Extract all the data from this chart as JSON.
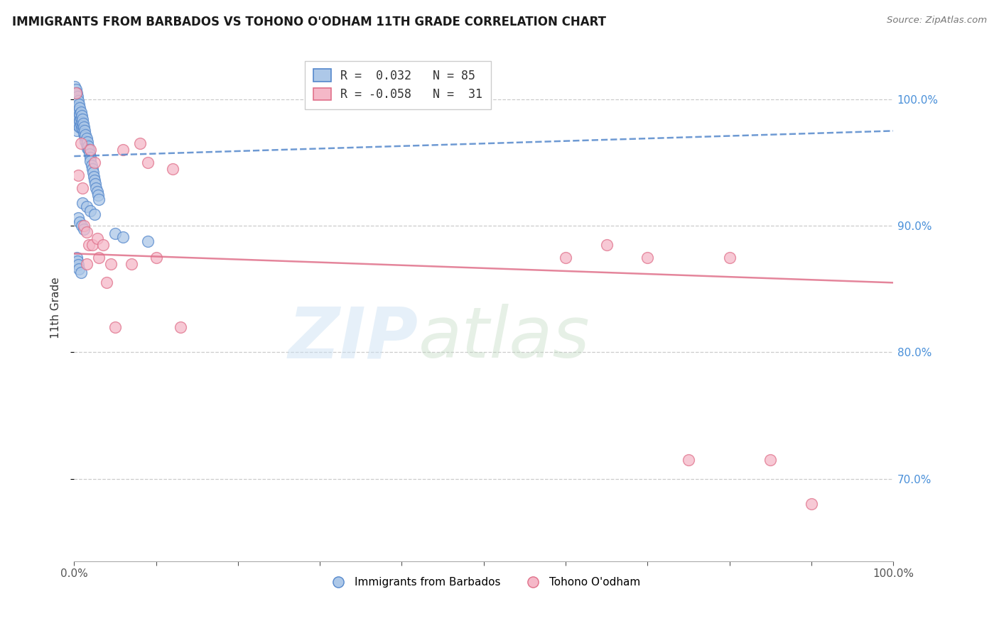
{
  "title": "IMMIGRANTS FROM BARBADOS VS TOHONO O'ODHAM 11TH GRADE CORRELATION CHART",
  "source": "Source: ZipAtlas.com",
  "ylabel": "11th Grade",
  "y_ticks": [
    0.7,
    0.8,
    0.9,
    1.0
  ],
  "y_tick_labels": [
    "70.0%",
    "80.0%",
    "90.0%",
    "100.0%"
  ],
  "x_lim": [
    0.0,
    1.0
  ],
  "y_lim": [
    0.635,
    1.035
  ],
  "series1_label": "Immigrants from Barbados",
  "series1_R": "0.032",
  "series1_N": "85",
  "series1_color": "#adc8e8",
  "series1_edge_color": "#5588cc",
  "series2_label": "Tohono O'odham",
  "series2_R": "-0.058",
  "series2_N": "31",
  "series2_color": "#f5b8c8",
  "series2_edge_color": "#e0708a",
  "blue_trend_x": [
    0.0,
    1.0
  ],
  "blue_trend_y": [
    0.955,
    0.975
  ],
  "pink_trend_x": [
    0.0,
    1.0
  ],
  "pink_trend_y": [
    0.878,
    0.855
  ],
  "blue_x": [
    0.001,
    0.001,
    0.001,
    0.001,
    0.002,
    0.002,
    0.002,
    0.002,
    0.002,
    0.003,
    0.003,
    0.003,
    0.003,
    0.003,
    0.003,
    0.003,
    0.004,
    0.004,
    0.004,
    0.004,
    0.004,
    0.005,
    0.005,
    0.005,
    0.005,
    0.005,
    0.006,
    0.006,
    0.006,
    0.006,
    0.007,
    0.007,
    0.007,
    0.007,
    0.008,
    0.008,
    0.008,
    0.009,
    0.009,
    0.009,
    0.01,
    0.01,
    0.011,
    0.011,
    0.012,
    0.012,
    0.013,
    0.013,
    0.014,
    0.014,
    0.015,
    0.015,
    0.016,
    0.016,
    0.017,
    0.018,
    0.019,
    0.02,
    0.02,
    0.021,
    0.022,
    0.023,
    0.024,
    0.025,
    0.026,
    0.027,
    0.028,
    0.029,
    0.03,
    0.01,
    0.015,
    0.02,
    0.025,
    0.005,
    0.007,
    0.009,
    0.012,
    0.05,
    0.06,
    0.09,
    0.003,
    0.004,
    0.005,
    0.006,
    0.008
  ],
  "blue_y": [
    1.01,
    1.005,
    1.0,
    0.995,
    1.008,
    1.003,
    0.998,
    0.993,
    0.988,
    1.005,
    1.0,
    0.995,
    0.99,
    0.985,
    0.98,
    0.975,
    1.002,
    0.997,
    0.992,
    0.987,
    0.982,
    0.999,
    0.994,
    0.989,
    0.984,
    0.979,
    0.996,
    0.991,
    0.986,
    0.981,
    0.993,
    0.988,
    0.983,
    0.978,
    0.99,
    0.985,
    0.98,
    0.987,
    0.982,
    0.977,
    0.984,
    0.979,
    0.981,
    0.976,
    0.978,
    0.973,
    0.975,
    0.97,
    0.972,
    0.967,
    0.969,
    0.964,
    0.966,
    0.961,
    0.963,
    0.96,
    0.957,
    0.954,
    0.951,
    0.948,
    0.945,
    0.942,
    0.939,
    0.936,
    0.933,
    0.93,
    0.927,
    0.924,
    0.921,
    0.918,
    0.915,
    0.912,
    0.909,
    0.906,
    0.903,
    0.9,
    0.897,
    0.894,
    0.891,
    0.888,
    0.875,
    0.872,
    0.869,
    0.866,
    0.863
  ],
  "pink_x": [
    0.002,
    0.005,
    0.008,
    0.01,
    0.012,
    0.015,
    0.015,
    0.018,
    0.02,
    0.022,
    0.025,
    0.028,
    0.03,
    0.035,
    0.04,
    0.045,
    0.05,
    0.06,
    0.07,
    0.08,
    0.09,
    0.1,
    0.12,
    0.13,
    0.6,
    0.65,
    0.7,
    0.75,
    0.8,
    0.85,
    0.9
  ],
  "pink_y": [
    1.005,
    0.94,
    0.965,
    0.93,
    0.9,
    0.895,
    0.87,
    0.885,
    0.96,
    0.885,
    0.95,
    0.89,
    0.875,
    0.885,
    0.855,
    0.87,
    0.82,
    0.96,
    0.87,
    0.965,
    0.95,
    0.875,
    0.945,
    0.82,
    0.875,
    0.885,
    0.875,
    0.715,
    0.875,
    0.715,
    0.68
  ]
}
